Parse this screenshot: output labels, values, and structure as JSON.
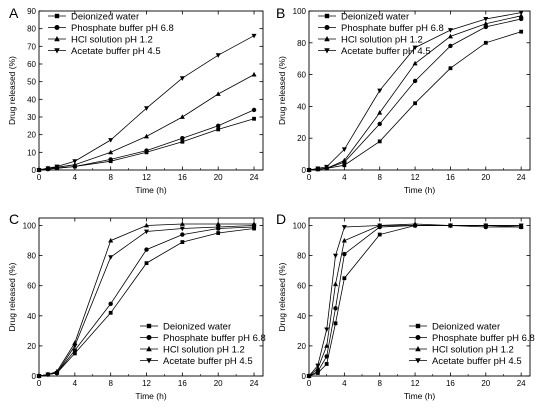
{
  "figure": {
    "series_names": [
      "Deionized water",
      "Phosphate buffer pH 6.8",
      "HCl solution pH 1.2",
      "Acetate buffer pH 4.5"
    ],
    "markers": [
      "square",
      "circle",
      "triangle-up",
      "triangle-down"
    ]
  },
  "chart_data": [
    {
      "id": "A",
      "type": "line",
      "panel_label": "A",
      "xlabel": "Time (h)",
      "ylabel": "Drug released (%)",
      "xlim": [
        0,
        25
      ],
      "ylim": [
        0,
        90
      ],
      "xticks": [
        0,
        4,
        8,
        12,
        16,
        20,
        24
      ],
      "yticks": [
        0,
        10,
        20,
        30,
        40,
        50,
        60,
        70,
        80,
        90
      ],
      "legend_position": "top-left",
      "x": [
        0,
        1,
        2,
        4,
        8,
        12,
        16,
        20,
        24
      ],
      "series": [
        {
          "name": "Deionized water",
          "marker": "square",
          "values": [
            0,
            0.5,
            1,
            2,
            5,
            10,
            16,
            23,
            29
          ]
        },
        {
          "name": "Phosphate buffer pH 6.8",
          "marker": "circle",
          "values": [
            0,
            0.5,
            1,
            2,
            6,
            11,
            18,
            25,
            34
          ]
        },
        {
          "name": "HCl solution pH 1.2",
          "marker": "triangle-up",
          "values": [
            0,
            1,
            1.5,
            3,
            10,
            19,
            30,
            43,
            54
          ]
        },
        {
          "name": "Acetate buffer pH 4.5",
          "marker": "triangle-down",
          "values": [
            0,
            1,
            2,
            5,
            17,
            35,
            52,
            65,
            76
          ]
        }
      ]
    },
    {
      "id": "B",
      "type": "line",
      "panel_label": "B",
      "xlabel": "Time (h)",
      "ylabel": "Drug released (%)",
      "xlim": [
        0,
        25
      ],
      "ylim": [
        0,
        100
      ],
      "xticks": [
        0,
        4,
        8,
        12,
        16,
        20,
        24
      ],
      "yticks": [
        0,
        20,
        40,
        60,
        80,
        100
      ],
      "legend_position": "top-left",
      "x": [
        0,
        1,
        2,
        4,
        8,
        12,
        16,
        20,
        24
      ],
      "series": [
        {
          "name": "Deionized water",
          "marker": "square",
          "values": [
            0,
            0.5,
            1,
            3,
            18,
            42,
            64,
            80,
            87
          ]
        },
        {
          "name": "Phosphate buffer pH 6.8",
          "marker": "circle",
          "values": [
            0,
            0.5,
            1,
            5,
            29,
            56,
            78,
            90,
            95
          ]
        },
        {
          "name": "HCl solution pH 1.2",
          "marker": "triangle-up",
          "values": [
            0,
            0.5,
            1,
            6,
            36,
            67,
            84,
            92,
            97
          ]
        },
        {
          "name": "Acetate buffer pH 4.5",
          "marker": "triangle-down",
          "values": [
            0,
            1,
            2,
            13,
            50,
            77,
            88,
            95,
            99
          ]
        }
      ]
    },
    {
      "id": "C",
      "type": "line",
      "panel_label": "C",
      "xlabel": "Time (h)",
      "ylabel": "Drug released (%)",
      "xlim": [
        0,
        25
      ],
      "ylim": [
        0,
        105
      ],
      "xticks": [
        0,
        4,
        8,
        12,
        16,
        20,
        24
      ],
      "yticks": [
        0,
        20,
        40,
        60,
        80,
        100
      ],
      "legend_position": "bottom-right",
      "x": [
        0,
        1,
        2,
        4,
        8,
        12,
        16,
        20,
        24
      ],
      "series": [
        {
          "name": "Deionized water",
          "marker": "square",
          "values": [
            0,
            1,
            2,
            15,
            42,
            75,
            89,
            95,
            98
          ]
        },
        {
          "name": "Phosphate buffer pH 6.8",
          "marker": "circle",
          "values": [
            0,
            1,
            2,
            17,
            48,
            84,
            94,
            98,
            99
          ]
        },
        {
          "name": "HCl solution pH 1.2",
          "marker": "triangle-up",
          "values": [
            0,
            1,
            3,
            22,
            90,
            100,
            101,
            101,
            101
          ]
        },
        {
          "name": "Acetate buffer pH 4.5",
          "marker": "triangle-down",
          "values": [
            0,
            1,
            2,
            20,
            79,
            96,
            98,
            99,
            100
          ]
        }
      ]
    },
    {
      "id": "D",
      "type": "line",
      "panel_label": "D",
      "xlabel": "Time (h)",
      "ylabel": "Drug released (%)",
      "xlim": [
        0,
        25
      ],
      "ylim": [
        0,
        105
      ],
      "xticks": [
        0,
        4,
        8,
        12,
        16,
        20,
        24
      ],
      "yticks": [
        0,
        20,
        40,
        60,
        80,
        100
      ],
      "legend_position": "bottom-right",
      "x": [
        0,
        1,
        2,
        3,
        4,
        8,
        12,
        16,
        20,
        24
      ],
      "series": [
        {
          "name": "Deionized water",
          "marker": "square",
          "values": [
            0,
            2,
            8,
            35,
            65,
            94,
            100,
            100,
            100,
            100
          ]
        },
        {
          "name": "Phosphate buffer pH 6.8",
          "marker": "circle",
          "values": [
            0,
            3,
            13,
            45,
            81,
            99,
            100,
            100,
            99,
            99
          ]
        },
        {
          "name": "HCl solution pH 1.2",
          "marker": "triangle-up",
          "values": [
            0,
            5,
            20,
            61,
            90,
            100,
            101,
            100,
            100,
            99
          ]
        },
        {
          "name": "Acetate buffer pH 4.5",
          "marker": "triangle-down",
          "values": [
            0,
            7,
            31,
            80,
            99,
            100,
            100,
            100,
            100,
            100
          ]
        }
      ]
    }
  ]
}
